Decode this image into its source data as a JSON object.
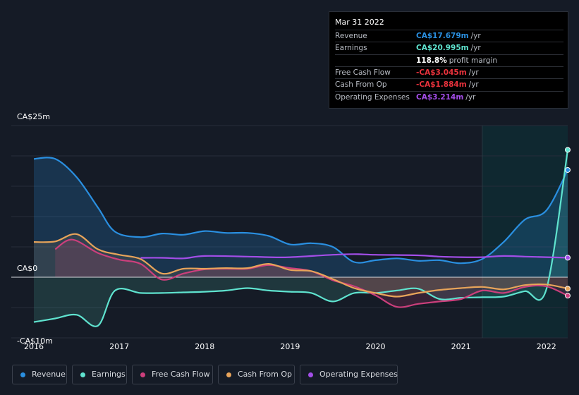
{
  "tooltip": {
    "date": "Mar 31 2022",
    "rows": [
      {
        "label": "Revenue",
        "value": "CA$17.679m",
        "unit": "/yr",
        "color": "#2a8fe0"
      },
      {
        "label": "Earnings",
        "value": "CA$20.995m",
        "unit": "/yr",
        "color": "#5fe3cf"
      },
      {
        "label": "",
        "value": "118.8%",
        "unit": "profit margin",
        "color": "#ffffff"
      },
      {
        "label": "Free Cash Flow",
        "value": "-CA$3.045m",
        "unit": "/yr",
        "color": "#e8323c"
      },
      {
        "label": "Cash From Op",
        "value": "-CA$1.884m",
        "unit": "/yr",
        "color": "#e8323c"
      },
      {
        "label": "Operating Expenses",
        "value": "CA$3.214m",
        "unit": "/yr",
        "color": "#a34ee8"
      }
    ]
  },
  "legend": [
    {
      "label": "Revenue",
      "color": "#2a8fe0"
    },
    {
      "label": "Earnings",
      "color": "#5fe3cf"
    },
    {
      "label": "Free Cash Flow",
      "color": "#cc3f7c"
    },
    {
      "label": "Cash From Op",
      "color": "#e8a45a"
    },
    {
      "label": "Operating Expenses",
      "color": "#a34ee8"
    }
  ],
  "chart_data": {
    "type": "line",
    "ytick_labels": [
      "CA$25m",
      "CA$0",
      "-CA$10m"
    ],
    "ylim": [
      -10,
      25
    ],
    "xlim": [
      2016,
      2022.25
    ],
    "x_tick_labels": [
      "2016",
      "2017",
      "2018",
      "2019",
      "2020",
      "2021",
      "2022"
    ],
    "forecast_shade_from": 2021.25,
    "series": [
      {
        "name": "Revenue",
        "color": "#2a8fe0",
        "fill": true,
        "points": [
          [
            2016,
            19.5
          ],
          [
            2016.25,
            19.5
          ],
          [
            2016.5,
            16.5
          ],
          [
            2016.75,
            11.5
          ],
          [
            2016.95,
            7.5
          ],
          [
            2017.25,
            6.6
          ],
          [
            2017.5,
            7.2
          ],
          [
            2017.75,
            7.0
          ],
          [
            2018,
            7.6
          ],
          [
            2018.25,
            7.3
          ],
          [
            2018.5,
            7.3
          ],
          [
            2018.75,
            6.8
          ],
          [
            2019,
            5.4
          ],
          [
            2019.25,
            5.6
          ],
          [
            2019.5,
            5.0
          ],
          [
            2019.75,
            2.5
          ],
          [
            2020,
            2.8
          ],
          [
            2020.25,
            3.1
          ],
          [
            2020.5,
            2.7
          ],
          [
            2020.75,
            2.8
          ],
          [
            2021,
            2.3
          ],
          [
            2021.25,
            3.0
          ],
          [
            2021.5,
            5.8
          ],
          [
            2021.75,
            9.5
          ],
          [
            2022,
            11.0
          ],
          [
            2022.25,
            17.679
          ]
        ]
      },
      {
        "name": "Earnings",
        "color": "#5fe3cf",
        "fill": true,
        "points": [
          [
            2016,
            -7.4
          ],
          [
            2016.25,
            -6.8
          ],
          [
            2016.5,
            -6.2
          ],
          [
            2016.75,
            -8.0
          ],
          [
            2016.95,
            -2.2
          ],
          [
            2017.25,
            -2.6
          ],
          [
            2017.5,
            -2.6
          ],
          [
            2017.75,
            -2.5
          ],
          [
            2018,
            -2.4
          ],
          [
            2018.25,
            -2.2
          ],
          [
            2018.5,
            -1.8
          ],
          [
            2018.75,
            -2.2
          ],
          [
            2019,
            -2.4
          ],
          [
            2019.25,
            -2.6
          ],
          [
            2019.5,
            -4.0
          ],
          [
            2019.75,
            -2.6
          ],
          [
            2020,
            -2.6
          ],
          [
            2020.25,
            -2.2
          ],
          [
            2020.5,
            -1.9
          ],
          [
            2020.75,
            -3.6
          ],
          [
            2021,
            -3.4
          ],
          [
            2021.25,
            -3.3
          ],
          [
            2021.5,
            -3.2
          ],
          [
            2021.75,
            -2.3
          ],
          [
            2022,
            -2.0
          ],
          [
            2022.25,
            20.995
          ]
        ]
      },
      {
        "name": "Free Cash Flow",
        "color": "#cc3f7c",
        "fill": true,
        "points": [
          [
            2016.25,
            4.6
          ],
          [
            2016.45,
            6.2
          ],
          [
            2016.75,
            4.0
          ],
          [
            2017,
            2.9
          ],
          [
            2017.25,
            2.2
          ],
          [
            2017.5,
            -0.4
          ],
          [
            2017.75,
            0.6
          ],
          [
            2018,
            1.3
          ],
          [
            2018.25,
            1.4
          ],
          [
            2018.5,
            1.4
          ],
          [
            2018.75,
            2.0
          ],
          [
            2019,
            1.5
          ],
          [
            2019.25,
            1.0
          ],
          [
            2019.5,
            -0.5
          ],
          [
            2019.75,
            -1.5
          ],
          [
            2020,
            -3.0
          ],
          [
            2020.25,
            -4.9
          ],
          [
            2020.5,
            -4.4
          ],
          [
            2020.75,
            -4.0
          ],
          [
            2021,
            -3.6
          ],
          [
            2021.25,
            -2.2
          ],
          [
            2021.5,
            -2.6
          ],
          [
            2021.75,
            -1.6
          ],
          [
            2022,
            -1.5
          ],
          [
            2022.25,
            -3.045
          ]
        ]
      },
      {
        "name": "Cash From Op",
        "color": "#e8a45a",
        "fill": true,
        "points": [
          [
            2016,
            5.8
          ],
          [
            2016.25,
            5.9
          ],
          [
            2016.5,
            7.1
          ],
          [
            2016.75,
            4.6
          ],
          [
            2017,
            3.7
          ],
          [
            2017.25,
            3.0
          ],
          [
            2017.5,
            0.6
          ],
          [
            2017.75,
            1.4
          ],
          [
            2018,
            1.4
          ],
          [
            2018.25,
            1.5
          ],
          [
            2018.5,
            1.5
          ],
          [
            2018.75,
            2.2
          ],
          [
            2019,
            1.2
          ],
          [
            2019.25,
            1.0
          ],
          [
            2019.5,
            -0.3
          ],
          [
            2019.75,
            -1.8
          ],
          [
            2020,
            -2.6
          ],
          [
            2020.25,
            -3.2
          ],
          [
            2020.5,
            -2.6
          ],
          [
            2020.75,
            -2.1
          ],
          [
            2021,
            -1.8
          ],
          [
            2021.25,
            -1.6
          ],
          [
            2021.5,
            -2.0
          ],
          [
            2021.75,
            -1.3
          ],
          [
            2022,
            -1.2
          ],
          [
            2022.25,
            -1.884
          ]
        ]
      },
      {
        "name": "Operating Expenses",
        "color": "#a34ee8",
        "fill": false,
        "points": [
          [
            2017.25,
            3.2
          ],
          [
            2017.5,
            3.2
          ],
          [
            2017.75,
            3.1
          ],
          [
            2018,
            3.5
          ],
          [
            2018.5,
            3.4
          ],
          [
            2018.75,
            3.3
          ],
          [
            2019,
            3.3
          ],
          [
            2019.5,
            3.7
          ],
          [
            2019.75,
            3.8
          ],
          [
            2020,
            3.7
          ],
          [
            2020.5,
            3.6
          ],
          [
            2020.75,
            3.4
          ],
          [
            2021,
            3.3
          ],
          [
            2021.25,
            3.3
          ],
          [
            2021.5,
            3.5
          ],
          [
            2021.75,
            3.4
          ],
          [
            2022,
            3.3
          ],
          [
            2022.25,
            3.214
          ]
        ]
      }
    ]
  }
}
